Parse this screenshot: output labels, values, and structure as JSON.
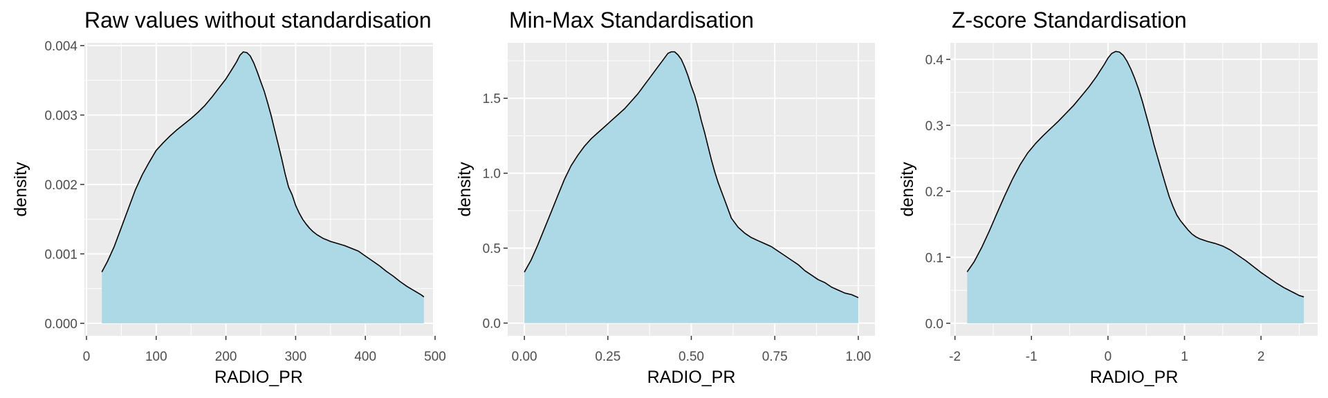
{
  "chart_data": [
    {
      "type": "area",
      "title": "Raw values without standardisation",
      "xlabel": "RADIO_PR",
      "ylabel": "density",
      "xlim": [
        -3,
        497
      ],
      "ylim": [
        -0.00018,
        0.00404
      ],
      "xticks": [
        0,
        100,
        200,
        300,
        400,
        500
      ],
      "xtick_labels": [
        "0",
        "100",
        "200",
        "300",
        "400",
        "500"
      ],
      "yticks": [
        0,
        0.001,
        0.002,
        0.003,
        0.004
      ],
      "ytick_labels": [
        "0.000",
        "0.001",
        "0.002",
        "0.003",
        "0.004"
      ],
      "grid": true,
      "fill_color": "#add8e6",
      "line_color": "#000000",
      "x": [
        22,
        30,
        40,
        50,
        60,
        70,
        80,
        90,
        100,
        110,
        120,
        130,
        140,
        150,
        160,
        170,
        180,
        190,
        200,
        205,
        210,
        215,
        220,
        225,
        230,
        235,
        240,
        245,
        250,
        255,
        260,
        265,
        270,
        275,
        280,
        285,
        290,
        295,
        300,
        305,
        310,
        315,
        320,
        325,
        330,
        335,
        340,
        345,
        350,
        360,
        370,
        380,
        390,
        400,
        410,
        420,
        430,
        440,
        450,
        460,
        470,
        480,
        484
      ],
      "values": [
        0.00074,
        0.00089,
        0.00111,
        0.00138,
        0.00165,
        0.00192,
        0.00214,
        0.00232,
        0.00249,
        0.0026,
        0.0027,
        0.00279,
        0.00287,
        0.00295,
        0.00304,
        0.00314,
        0.00326,
        0.00339,
        0.00352,
        0.0036,
        0.00368,
        0.00376,
        0.00386,
        0.00391,
        0.0039,
        0.00385,
        0.00375,
        0.00362,
        0.00348,
        0.00334,
        0.00317,
        0.00299,
        0.00278,
        0.00258,
        0.00237,
        0.00215,
        0.00196,
        0.00185,
        0.0017,
        0.00159,
        0.0015,
        0.00143,
        0.00137,
        0.00132,
        0.00128,
        0.00125,
        0.00122,
        0.0012,
        0.00118,
        0.00115,
        0.00112,
        0.00108,
        0.00104,
        0.00097,
        0.0009,
        0.00083,
        0.00075,
        0.00068,
        0.0006,
        0.00053,
        0.00047,
        0.00041,
        0.00038
      ]
    },
    {
      "type": "area",
      "title": "Min-Max Standardisation",
      "xlabel": "RADIO_PR",
      "ylabel": "density",
      "xlim": [
        -0.05,
        1.05
      ],
      "ylim": [
        -0.085,
        1.87
      ],
      "xticks": [
        0,
        0.25,
        0.5,
        0.75,
        1.0
      ],
      "xtick_labels": [
        "0.00",
        "0.25",
        "0.50",
        "0.75",
        "1.00"
      ],
      "yticks": [
        0,
        0.5,
        1.0,
        1.5
      ],
      "ytick_labels": [
        "0.0",
        "0.5",
        "1.0",
        "1.5"
      ],
      "grid": true,
      "fill_color": "#add8e6",
      "line_color": "#000000",
      "x": [
        0,
        0.02,
        0.04,
        0.06,
        0.08,
        0.1,
        0.12,
        0.14,
        0.16,
        0.18,
        0.2,
        0.22,
        0.24,
        0.26,
        0.28,
        0.3,
        0.32,
        0.34,
        0.36,
        0.38,
        0.4,
        0.41,
        0.42,
        0.43,
        0.44,
        0.45,
        0.46,
        0.47,
        0.48,
        0.49,
        0.5,
        0.51,
        0.52,
        0.53,
        0.54,
        0.55,
        0.56,
        0.57,
        0.58,
        0.59,
        0.6,
        0.61,
        0.62,
        0.63,
        0.64,
        0.66,
        0.68,
        0.7,
        0.72,
        0.74,
        0.76,
        0.78,
        0.8,
        0.82,
        0.84,
        0.86,
        0.88,
        0.9,
        0.92,
        0.94,
        0.96,
        0.98,
        1.0
      ],
      "values": [
        0.34,
        0.42,
        0.52,
        0.63,
        0.74,
        0.85,
        0.96,
        1.05,
        1.12,
        1.18,
        1.23,
        1.27,
        1.31,
        1.35,
        1.39,
        1.43,
        1.48,
        1.53,
        1.59,
        1.65,
        1.71,
        1.74,
        1.77,
        1.8,
        1.81,
        1.81,
        1.79,
        1.76,
        1.71,
        1.65,
        1.58,
        1.52,
        1.44,
        1.35,
        1.27,
        1.18,
        1.09,
        1.01,
        0.94,
        0.88,
        0.82,
        0.76,
        0.7,
        0.67,
        0.64,
        0.6,
        0.57,
        0.55,
        0.53,
        0.51,
        0.48,
        0.45,
        0.42,
        0.39,
        0.35,
        0.32,
        0.29,
        0.27,
        0.24,
        0.22,
        0.2,
        0.19,
        0.17
      ]
    },
    {
      "type": "area",
      "title": "Z-score Standardisation",
      "xlabel": "RADIO_PR",
      "ylabel": "density",
      "xlim": [
        -2.06,
        2.74
      ],
      "ylim": [
        -0.019,
        0.425
      ],
      "xticks": [
        -2,
        -1,
        0,
        1,
        2
      ],
      "xtick_labels": [
        "-2",
        "-1",
        "0",
        "1",
        "2"
      ],
      "yticks": [
        0,
        0.1,
        0.2,
        0.3,
        0.4
      ],
      "ytick_labels": [
        "0.0",
        "0.1",
        "0.2",
        "0.3",
        "0.4"
      ],
      "grid": true,
      "fill_color": "#add8e6",
      "line_color": "#000000",
      "x": [
        -1.84,
        -1.75,
        -1.65,
        -1.55,
        -1.45,
        -1.35,
        -1.25,
        -1.15,
        -1.05,
        -0.95,
        -0.85,
        -0.75,
        -0.65,
        -0.55,
        -0.45,
        -0.35,
        -0.25,
        -0.15,
        -0.1,
        -0.05,
        0.0,
        0.05,
        0.1,
        0.15,
        0.2,
        0.25,
        0.3,
        0.35,
        0.4,
        0.45,
        0.5,
        0.55,
        0.6,
        0.65,
        0.7,
        0.75,
        0.8,
        0.85,
        0.9,
        0.95,
        1.0,
        1.05,
        1.1,
        1.15,
        1.2,
        1.3,
        1.4,
        1.5,
        1.6,
        1.7,
        1.8,
        1.9,
        2.0,
        2.1,
        2.2,
        2.3,
        2.4,
        2.5,
        2.56
      ],
      "values": [
        0.078,
        0.093,
        0.115,
        0.14,
        0.167,
        0.193,
        0.218,
        0.24,
        0.258,
        0.272,
        0.284,
        0.295,
        0.306,
        0.318,
        0.33,
        0.344,
        0.358,
        0.374,
        0.383,
        0.392,
        0.402,
        0.409,
        0.412,
        0.411,
        0.406,
        0.397,
        0.385,
        0.371,
        0.355,
        0.336,
        0.315,
        0.294,
        0.271,
        0.251,
        0.231,
        0.211,
        0.192,
        0.177,
        0.164,
        0.155,
        0.148,
        0.141,
        0.135,
        0.131,
        0.128,
        0.124,
        0.121,
        0.117,
        0.111,
        0.103,
        0.095,
        0.086,
        0.077,
        0.069,
        0.061,
        0.054,
        0.048,
        0.042,
        0.04
      ]
    }
  ]
}
